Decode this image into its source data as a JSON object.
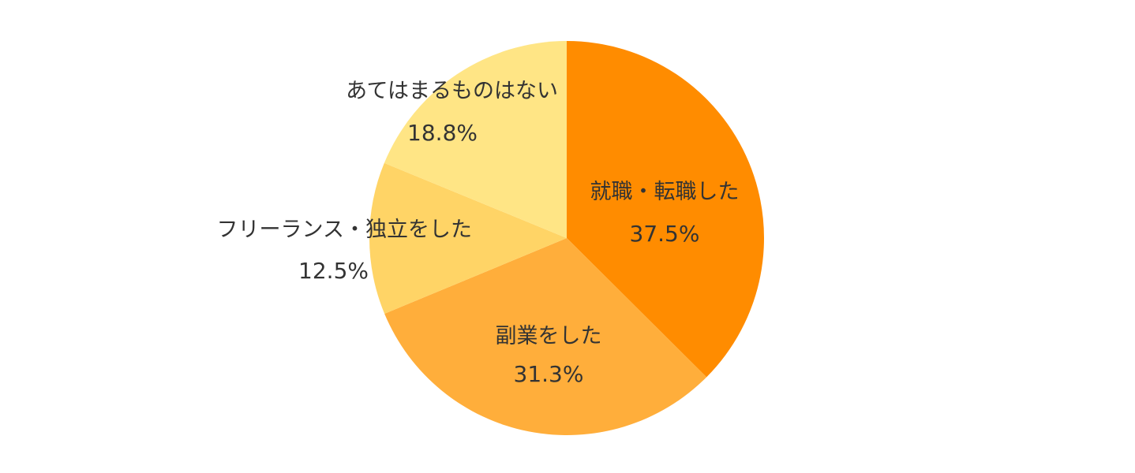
{
  "chart_data": {
    "type": "pie",
    "title": "",
    "legend": "none",
    "start_angle_deg": 0,
    "direction": "clockwise",
    "slices": [
      {
        "label": "就職・転職した",
        "value": 37.5,
        "value_label": "37.5%",
        "color": "#FF8C00"
      },
      {
        "label": "副業をした",
        "value": 31.3,
        "value_label": "31.3%",
        "color": "#FFAE3B"
      },
      {
        "label": "フリーランス・独立をした",
        "value": 12.5,
        "value_label": "12.5%",
        "color": "#FFD466"
      },
      {
        "label": "あてはまるものはない",
        "value": 18.8,
        "value_label": "18.8%",
        "color": "#FFE585"
      }
    ]
  }
}
